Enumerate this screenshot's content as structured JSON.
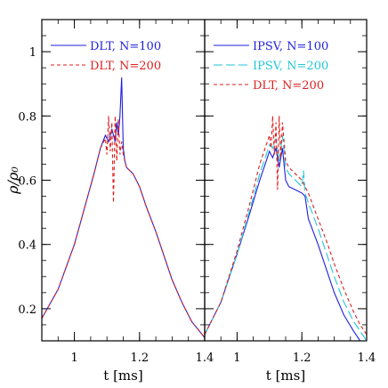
{
  "chart_data": [
    {
      "type": "line",
      "panel": "left",
      "xlabel": "t [ms]",
      "ylabel": "ρ/ρ₀",
      "xlim": [
        0.9,
        1.4
      ],
      "ylim": [
        0.1,
        1.1
      ],
      "xticks": [
        1,
        1.2,
        1.4
      ],
      "xtick_labels": [
        "1",
        "1.2",
        "1.4"
      ],
      "yticks": [
        0.2,
        0.4,
        0.6,
        0.8,
        1
      ],
      "ytick_labels": [
        "0.2",
        "0.4",
        "0.6",
        "0.8",
        "1"
      ],
      "legend_position": "top-left",
      "series": [
        {
          "name": "DLT,  N=100",
          "color": "#1f1fdd",
          "dash": "solid",
          "x": [
            0.9,
            0.95,
            1.0,
            1.03,
            1.06,
            1.08,
            1.095,
            1.105,
            1.115,
            1.125,
            1.13,
            1.135,
            1.14,
            1.145,
            1.15,
            1.155,
            1.16,
            1.17,
            1.18,
            1.2,
            1.22,
            1.25,
            1.28,
            1.3,
            1.33,
            1.36,
            1.4
          ],
          "y": [
            0.17,
            0.26,
            0.4,
            0.51,
            0.62,
            0.7,
            0.74,
            0.72,
            0.76,
            0.72,
            0.78,
            0.74,
            0.8,
            0.92,
            0.7,
            0.66,
            0.64,
            0.63,
            0.62,
            0.58,
            0.52,
            0.44,
            0.35,
            0.29,
            0.22,
            0.16,
            0.11
          ]
        },
        {
          "name": "DLT,  N=200",
          "color": "#dd1f1f",
          "dash": "dashed",
          "x": [
            0.9,
            0.95,
            1.0,
            1.03,
            1.06,
            1.08,
            1.095,
            1.1,
            1.105,
            1.11,
            1.115,
            1.12,
            1.125,
            1.13,
            1.135,
            1.14,
            1.145,
            1.15,
            1.16,
            1.17,
            1.18,
            1.2,
            1.22,
            1.25,
            1.28,
            1.3,
            1.33,
            1.36,
            1.4
          ],
          "y": [
            0.17,
            0.26,
            0.4,
            0.51,
            0.62,
            0.7,
            0.73,
            0.68,
            0.8,
            0.69,
            0.78,
            0.53,
            0.8,
            0.66,
            0.79,
            0.68,
            0.72,
            0.68,
            0.64,
            0.63,
            0.62,
            0.58,
            0.52,
            0.44,
            0.35,
            0.29,
            0.22,
            0.16,
            0.11
          ]
        }
      ]
    },
    {
      "type": "line",
      "panel": "right",
      "xlabel": "t [ms]",
      "ylabel": "",
      "xlim": [
        0.9,
        1.4
      ],
      "ylim": [
        0.1,
        1.1
      ],
      "xticks": [
        1,
        1.2,
        1.4
      ],
      "xtick_labels": [
        "1",
        "1.2",
        "1.4"
      ],
      "yticks": [
        0.2,
        0.4,
        0.6,
        0.8,
        1
      ],
      "ytick_labels": [],
      "legend_position": "top-left",
      "series": [
        {
          "name": "IPSV,  N=100",
          "color": "#1f1fdd",
          "dash": "solid",
          "x": [
            0.9,
            0.95,
            1.0,
            1.04,
            1.07,
            1.09,
            1.1,
            1.11,
            1.12,
            1.13,
            1.14,
            1.15,
            1.16,
            1.18,
            1.2,
            1.21,
            1.22,
            1.25,
            1.28,
            1.3,
            1.33,
            1.36,
            1.38,
            1.4
          ],
          "y": [
            0.12,
            0.22,
            0.37,
            0.5,
            0.6,
            0.66,
            0.69,
            0.67,
            0.7,
            0.64,
            0.7,
            0.6,
            0.58,
            0.57,
            0.56,
            0.55,
            0.48,
            0.4,
            0.31,
            0.25,
            0.18,
            0.13,
            0.1,
            0.09
          ]
        },
        {
          "name": "IPSV,  N=200",
          "color": "#22c7d6",
          "dash": "longdash",
          "x": [
            0.9,
            0.95,
            1.0,
            1.04,
            1.07,
            1.09,
            1.1,
            1.11,
            1.12,
            1.13,
            1.14,
            1.15,
            1.16,
            1.18,
            1.2,
            1.205,
            1.21,
            1.22,
            1.25,
            1.28,
            1.3,
            1.33,
            1.36,
            1.38,
            1.4
          ],
          "y": [
            0.12,
            0.22,
            0.37,
            0.51,
            0.62,
            0.68,
            0.71,
            0.7,
            0.73,
            0.66,
            0.74,
            0.64,
            0.62,
            0.6,
            0.58,
            0.63,
            0.56,
            0.53,
            0.45,
            0.36,
            0.3,
            0.22,
            0.16,
            0.13,
            0.1
          ]
        },
        {
          "name": "DLT,   N=200",
          "color": "#dd1f1f",
          "dash": "dashed",
          "x": [
            0.9,
            0.95,
            1.0,
            1.04,
            1.07,
            1.09,
            1.1,
            1.105,
            1.11,
            1.115,
            1.12,
            1.125,
            1.13,
            1.135,
            1.14,
            1.15,
            1.16,
            1.18,
            1.2,
            1.22,
            1.25,
            1.28,
            1.3,
            1.33,
            1.36,
            1.38,
            1.4
          ],
          "y": [
            0.12,
            0.22,
            0.38,
            0.53,
            0.65,
            0.71,
            0.74,
            0.7,
            0.8,
            0.68,
            0.78,
            0.57,
            0.8,
            0.67,
            0.78,
            0.66,
            0.64,
            0.62,
            0.6,
            0.56,
            0.48,
            0.4,
            0.34,
            0.26,
            0.19,
            0.15,
            0.12
          ]
        }
      ]
    }
  ]
}
